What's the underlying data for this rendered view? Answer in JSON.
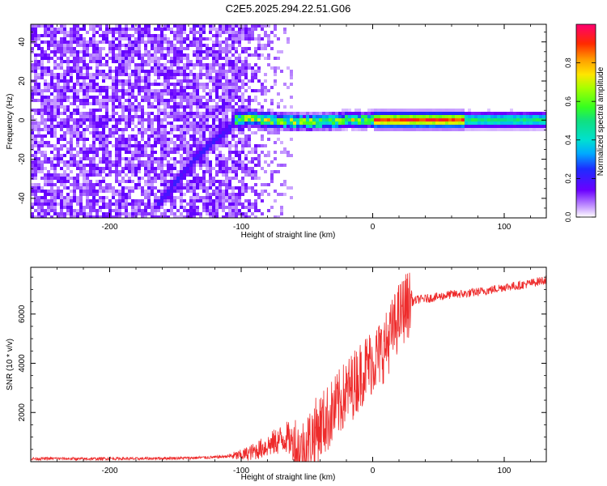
{
  "figure_title": "C2E5.2025.294.22.51.G06",
  "colors": {
    "snr_line": "#ee2b2b",
    "axis": "#000000",
    "background": "#ffffff"
  },
  "chart_data": [
    {
      "type": "heatmap",
      "title": "",
      "xlabel": "Height of straight line (km)",
      "ylabel": "Frequency (Hz)",
      "xlim": [
        -260,
        132
      ],
      "ylim": [
        -50,
        49
      ],
      "x_ticks": [
        -200,
        -100,
        0,
        100
      ],
      "x_tick_labels": [
        "-200",
        "-100",
        "0",
        "100"
      ],
      "y_ticks": [
        -40,
        -20,
        0,
        20,
        40
      ],
      "y_tick_labels": [
        "-40",
        "-20",
        "0",
        "20",
        "40"
      ],
      "colorbar": {
        "label": "Normalized spectral amplitude",
        "range": [
          0,
          1
        ],
        "ticks": [
          0.0,
          0.2,
          0.4,
          0.6,
          0.8
        ],
        "tick_labels": [
          "0.0",
          "0.2",
          "0.4",
          "0.6",
          "0.8"
        ]
      },
      "ridge": {
        "description": "dominant frequency vs height",
        "x": [
          -165,
          -150,
          -135,
          -120,
          -110,
          -105,
          -95,
          -80,
          -60,
          -40,
          -20,
          0,
          40,
          80,
          120,
          132
        ],
        "y": [
          -45,
          -32,
          -20,
          -10,
          -5,
          0,
          1,
          0,
          -1,
          -1,
          0,
          0,
          0,
          0,
          0,
          0
        ]
      },
      "secondary_streak": {
        "x": [
          -195,
          -170
        ],
        "y": [
          25,
          48
        ]
      }
    },
    {
      "type": "line",
      "title": "",
      "xlabel": "Height of straight line (km)",
      "ylabel": "SNR (10 * v/v)",
      "xlim": [
        -260,
        132
      ],
      "ylim": [
        0,
        7900
      ],
      "x_ticks": [
        -200,
        -100,
        0,
        100
      ],
      "x_tick_labels": [
        "-200",
        "-100",
        "0",
        "100"
      ],
      "y_ticks": [
        2000,
        4000,
        6000
      ],
      "y_tick_labels": [
        "2000",
        "4000",
        "6000"
      ],
      "series": [
        {
          "name": "SNR",
          "x": [
            -260,
            -240,
            -220,
            -200,
            -180,
            -160,
            -140,
            -120,
            -100,
            -90,
            -80,
            -70,
            -65,
            -60,
            -55,
            -50,
            -45,
            -40,
            -35,
            -30,
            -25,
            -20,
            -15,
            -10,
            -5,
            0,
            5,
            10,
            15,
            20,
            25,
            30,
            35,
            40,
            50,
            60,
            70,
            80,
            90,
            100,
            110,
            120,
            132
          ],
          "y": [
            120,
            130,
            110,
            130,
            120,
            140,
            150,
            180,
            260,
            420,
            650,
            900,
            1000,
            700,
            300,
            650,
            1100,
            1450,
            1700,
            2050,
            2400,
            2800,
            3100,
            3500,
            3850,
            4100,
            4350,
            4700,
            5300,
            5900,
            6300,
            6500,
            6600,
            6620,
            6700,
            6800,
            6820,
            6900,
            6980,
            7100,
            7150,
            7250,
            7400
          ]
        }
      ]
    }
  ]
}
